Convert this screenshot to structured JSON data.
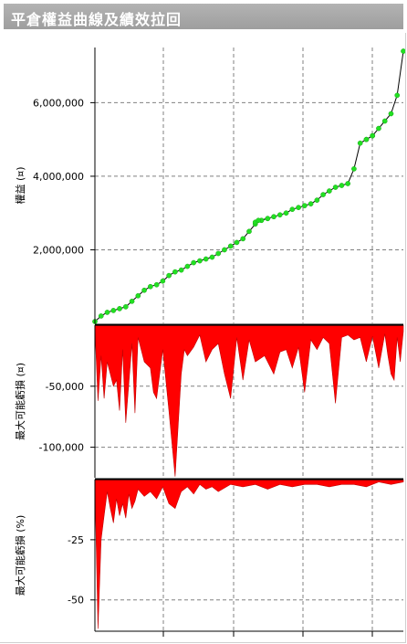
{
  "window": {
    "title": "平倉權益曲線及績效拉回"
  },
  "colors": {
    "equity_line": "#000000",
    "equity_marker": "#22e022",
    "drawdown": "#ff0000",
    "grid": "#808080"
  },
  "chart_data": [
    {
      "type": "line",
      "ylabel": "權益 (¤)",
      "yticks": [
        2000000,
        4000000,
        6000000
      ],
      "ytick_labels": [
        "2,000,000",
        "4,000,000",
        "6,000,000"
      ],
      "ylim": [
        0,
        7500000
      ],
      "grid": true,
      "series": [
        {
          "x": [
            0,
            2,
            4,
            6,
            8,
            10,
            12,
            14,
            16,
            18,
            20,
            22,
            24,
            26,
            28,
            30,
            32,
            34,
            36,
            38,
            40,
            42,
            44,
            46,
            48,
            50,
            52,
            54,
            56,
            52,
            53,
            56,
            58,
            60,
            62,
            64,
            66,
            68,
            70,
            72,
            74,
            76,
            78,
            80,
            82,
            84,
            86,
            88,
            90,
            88,
            90,
            92,
            94,
            96,
            98,
            100
          ],
          "values": [
            50000,
            200000,
            300000,
            350000,
            400000,
            450000,
            600000,
            750000,
            900000,
            1000000,
            1050000,
            1150000,
            1300000,
            1400000,
            1450000,
            1550000,
            1650000,
            1700000,
            1750000,
            1800000,
            1900000,
            2000000,
            2100000,
            2200000,
            2300000,
            2500000,
            2700000,
            2800000,
            2850000,
            2750000,
            2800000,
            2850000,
            2900000,
            2950000,
            3000000,
            3100000,
            3150000,
            3200000,
            3250000,
            3350000,
            3500000,
            3600000,
            3700000,
            3750000,
            3800000,
            4200000,
            4900000,
            5000000,
            5100000,
            5000000,
            5100000,
            5300000,
            5500000,
            5700000,
            6200000,
            7400000
          ]
        }
      ]
    },
    {
      "type": "area",
      "ylabel": "最大可能虧損 (¤)",
      "yticks": [
        -50000,
        -100000
      ],
      "ytick_labels": [
        "-50,000",
        "-100,000"
      ],
      "ylim": [
        -125000,
        0
      ],
      "grid": true,
      "series": [
        {
          "x": [
            0,
            1,
            2,
            3,
            4,
            6,
            7,
            8,
            9,
            10,
            12,
            13,
            14,
            16,
            18,
            19,
            20,
            22,
            24,
            26,
            28,
            29,
            30,
            32,
            34,
            36,
            38,
            40,
            42,
            44,
            46,
            48,
            50,
            52,
            55,
            58,
            60,
            62,
            64,
            66,
            68,
            70,
            72,
            74,
            76,
            78,
            80,
            82,
            84,
            86,
            88,
            90,
            92,
            94,
            95,
            96,
            97,
            98,
            99,
            100
          ],
          "values": [
            -2000,
            -62000,
            -25000,
            -60000,
            -30000,
            -50000,
            -45000,
            -70000,
            -20000,
            -80000,
            -15000,
            -72000,
            -10000,
            -30000,
            -35000,
            -55000,
            -60000,
            -20000,
            -70000,
            -124000,
            -40000,
            -20000,
            -25000,
            -18000,
            -8000,
            -30000,
            -20000,
            -15000,
            -40000,
            -60000,
            -10000,
            -45000,
            -12000,
            -30000,
            -25000,
            -40000,
            -22000,
            -20000,
            -35000,
            -18000,
            -55000,
            -12000,
            -20000,
            -10000,
            -15000,
            -64000,
            -10000,
            -8000,
            -12000,
            -10000,
            -30000,
            -9000,
            -35000,
            -7000,
            -25000,
            -40000,
            -45000,
            -10000,
            -30000,
            -5000
          ]
        }
      ]
    },
    {
      "type": "area",
      "ylabel": "最大可能虧損 (%)",
      "yticks": [
        -25,
        -50
      ],
      "ytick_labels": [
        "-25",
        "-50"
      ],
      "ylim": [
        -63,
        0
      ],
      "grid": true,
      "series": [
        {
          "x": [
            0,
            1,
            2,
            3,
            4,
            5,
            6,
            7,
            8,
            9,
            10,
            11,
            12,
            13,
            14,
            16,
            18,
            20,
            22,
            24,
            26,
            28,
            30,
            32,
            34,
            36,
            38,
            40,
            44,
            48,
            52,
            56,
            60,
            64,
            68,
            72,
            76,
            80,
            84,
            88,
            92,
            96,
            100
          ],
          "values": [
            -2,
            -62,
            -25,
            -15,
            -5,
            -12,
            -18,
            -8,
            -15,
            -10,
            -16,
            -6,
            -12,
            -9,
            -4,
            -7,
            -5,
            -8,
            -3,
            -10,
            -12,
            -5,
            -3,
            -6,
            -2,
            -4,
            -3,
            -5,
            -2,
            -3,
            -2,
            -4,
            -2,
            -3,
            -2,
            -2,
            -3,
            -2,
            -2,
            -3,
            -1,
            -2,
            -1
          ]
        }
      ]
    }
  ]
}
